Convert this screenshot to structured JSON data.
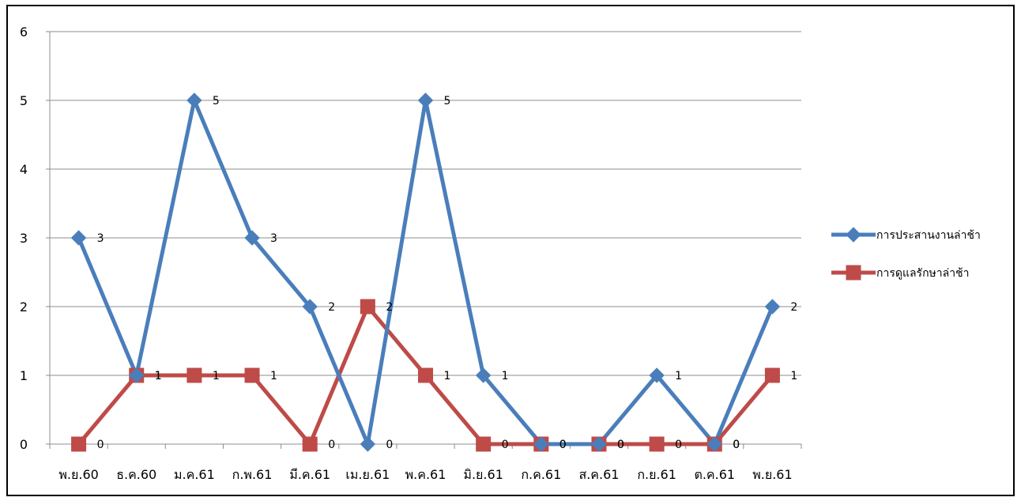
{
  "chart_data": {
    "type": "line",
    "title": "",
    "xlabel": "",
    "ylabel": "",
    "ylim": [
      0,
      6
    ],
    "yticks": [
      0,
      1,
      2,
      3,
      4,
      5,
      6
    ],
    "grid": "horizontal",
    "legend_position": "right",
    "categories": [
      "พ.ย.60",
      "ธ.ค.60",
      "ม.ค.61",
      "ก.พ.61",
      "มี.ค.61",
      "เม.ย.61",
      "พ.ค.61",
      "มิ.ย.61",
      "ก.ค.61",
      "ส.ค.61",
      "ก.ย.61",
      "ต.ค.61",
      "พ.ย.61"
    ],
    "series": [
      {
        "name": "การประสานงานล่าช้า",
        "color": "#4a7ebb",
        "marker": "diamond",
        "values": [
          3,
          1,
          5,
          3,
          2,
          0,
          5,
          1,
          0,
          0,
          1,
          0,
          2
        ]
      },
      {
        "name": "การดูแลรักษาล่าช้า",
        "color": "#be4b48",
        "marker": "square",
        "values": [
          0,
          1,
          1,
          1,
          0,
          2,
          1,
          0,
          0,
          0,
          0,
          0,
          1
        ]
      }
    ]
  }
}
